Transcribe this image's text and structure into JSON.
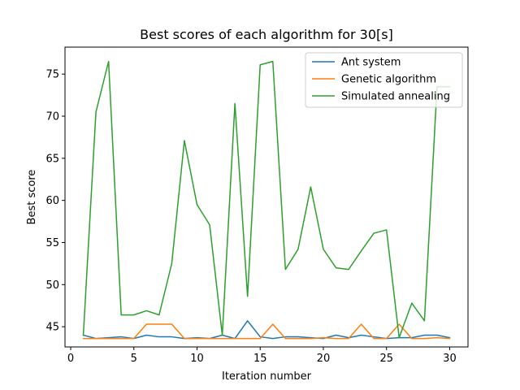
{
  "chart_data": {
    "type": "line",
    "title": "Best scores of each algorithm for 30[s]",
    "xlabel": "Iteration number",
    "ylabel": "Best score",
    "xlim": [
      -0.45,
      31.45
    ],
    "ylim": [
      42.6,
      78.2
    ],
    "xticks": [
      0,
      5,
      10,
      15,
      20,
      25,
      30
    ],
    "yticks": [
      45,
      50,
      55,
      60,
      65,
      70,
      75
    ],
    "grid": false,
    "legend": "top-right",
    "x": [
      1,
      2,
      3,
      4,
      5,
      6,
      7,
      8,
      9,
      10,
      11,
      12,
      13,
      14,
      15,
      16,
      17,
      18,
      19,
      20,
      21,
      22,
      23,
      24,
      25,
      26,
      27,
      28,
      29,
      30
    ],
    "series": [
      {
        "name": "Ant system",
        "color": "#1f77b4",
        "values": [
          44.0,
          43.6,
          43.7,
          43.8,
          43.6,
          44.0,
          43.8,
          43.8,
          43.6,
          43.7,
          43.6,
          44.0,
          43.6,
          45.7,
          43.8,
          43.6,
          43.8,
          43.8,
          43.7,
          43.6,
          44.0,
          43.7,
          44.0,
          43.8,
          43.6,
          43.7,
          43.7,
          44.0,
          44.0,
          43.7
        ]
      },
      {
        "name": "Genetic algorithm",
        "color": "#ff7f0e",
        "values": [
          43.6,
          43.6,
          43.6,
          43.6,
          43.6,
          45.3,
          45.3,
          45.3,
          43.6,
          43.6,
          43.6,
          43.6,
          43.6,
          43.6,
          43.6,
          45.3,
          43.6,
          43.6,
          43.6,
          43.7,
          43.6,
          43.6,
          45.3,
          43.6,
          43.6,
          45.3,
          43.6,
          43.6,
          43.7,
          43.6
        ]
      },
      {
        "name": "Simulated annealing",
        "color": "#2ca02c",
        "values": [
          44.0,
          70.5,
          76.5,
          46.4,
          46.4,
          46.9,
          46.4,
          52.5,
          67.1,
          59.5,
          57.1,
          44.0,
          71.5,
          48.6,
          76.1,
          76.5,
          51.8,
          54.2,
          61.6,
          54.2,
          52.0,
          51.8,
          54.0,
          56.1,
          56.5,
          43.7,
          47.8,
          45.7,
          73.5,
          73.5
        ]
      }
    ]
  }
}
